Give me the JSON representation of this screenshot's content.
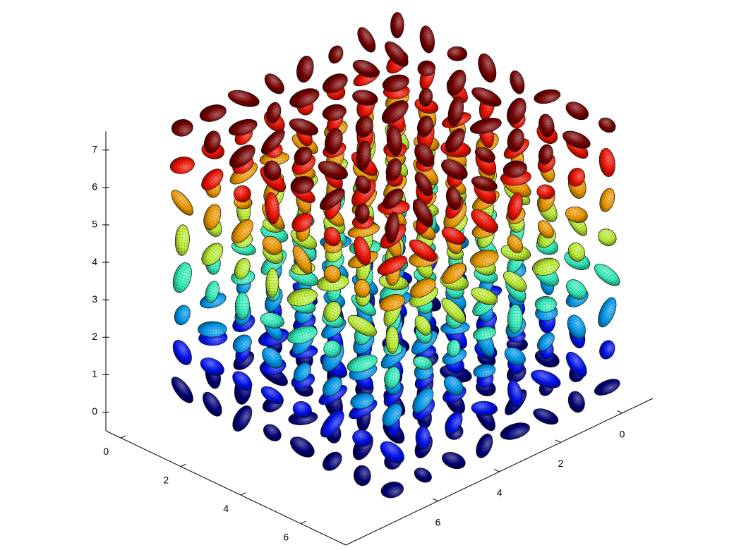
{
  "chart_data": {
    "type": "scatter3d",
    "colormap": "jet",
    "xlim": [
      -0.5,
      7.5
    ],
    "ylim": [
      -1,
      9
    ],
    "zlim": [
      -0.5,
      7.5
    ],
    "xticks": [
      0,
      2,
      4,
      6
    ],
    "yticks": [
      0,
      2,
      4,
      6
    ],
    "zticks": [
      0,
      1,
      2,
      3,
      4,
      5,
      6,
      7
    ],
    "x": [
      0,
      0,
      0,
      0,
      0,
      0,
      0,
      0,
      0,
      0,
      0,
      0,
      0,
      0,
      0,
      0,
      0,
      0,
      0,
      0,
      0,
      0,
      0,
      0,
      0,
      0,
      0,
      0,
      0,
      0,
      0,
      0,
      0,
      0,
      0,
      0,
      0,
      0,
      0,
      0,
      0,
      0,
      0,
      0,
      0,
      0,
      0,
      0,
      0,
      0,
      0,
      0,
      0,
      0,
      0,
      0,
      0,
      0,
      0,
      0,
      0,
      0,
      0,
      0,
      1,
      1,
      1,
      1,
      1,
      1,
      1,
      1,
      1,
      1,
      1,
      1,
      1,
      1,
      1,
      1,
      1,
      1,
      1,
      1,
      1,
      1,
      1,
      1,
      1,
      1,
      1,
      1,
      1,
      1,
      1,
      1,
      1,
      1,
      1,
      1,
      1,
      1,
      1,
      1,
      1,
      1,
      1,
      1,
      1,
      1,
      1,
      1,
      1,
      1,
      1,
      1,
      1,
      1,
      1,
      1,
      1,
      1,
      1,
      1,
      1,
      1,
      1,
      1,
      2,
      2,
      2,
      2,
      2,
      2,
      2,
      2,
      2,
      2,
      2,
      2,
      2,
      2,
      2,
      2,
      2,
      2,
      2,
      2,
      2,
      2,
      2,
      2,
      2,
      2,
      2,
      2,
      2,
      2,
      2,
      2,
      2,
      2,
      2,
      2,
      2,
      2,
      2,
      2,
      2,
      2,
      2,
      2,
      2,
      2,
      2,
      2,
      2,
      2,
      2,
      2,
      2,
      2,
      2,
      2,
      2,
      2,
      2,
      2,
      2,
      2,
      2,
      2,
      3,
      3,
      3,
      3,
      3,
      3,
      3,
      3,
      3,
      3,
      3,
      3,
      3,
      3,
      3,
      3,
      3,
      3,
      3,
      3,
      3,
      3,
      3,
      3,
      3,
      3,
      3,
      3,
      3,
      3,
      3,
      3,
      3,
      3,
      3,
      3,
      3,
      3,
      3,
      3,
      3,
      3,
      3,
      3,
      3,
      3,
      3,
      3,
      3,
      3,
      3,
      3,
      3,
      3,
      3,
      3,
      3,
      3,
      3,
      3,
      3,
      3,
      3,
      3,
      4,
      4,
      4,
      4,
      4,
      4,
      4,
      4,
      4,
      4,
      4,
      4,
      4,
      4,
      4,
      4,
      4,
      4,
      4,
      4,
      4,
      4,
      4,
      4,
      4,
      4,
      4,
      4,
      4,
      4,
      4,
      4,
      4,
      4,
      4,
      4,
      4,
      4,
      4,
      4,
      4,
      4,
      4,
      4,
      4,
      4,
      4,
      4,
      4,
      4,
      4,
      4,
      4,
      4,
      4,
      4,
      4,
      4,
      4,
      4,
      4,
      4,
      4,
      4,
      5,
      5,
      5,
      5,
      5,
      5,
      5,
      5,
      5,
      5,
      5,
      5,
      5,
      5,
      5,
      5,
      5,
      5,
      5,
      5,
      5,
      5,
      5,
      5,
      5,
      5,
      5,
      5,
      5,
      5,
      5,
      5,
      5,
      5,
      5,
      5,
      5,
      5,
      5,
      5,
      5,
      5,
      5,
      5,
      5,
      5,
      5,
      5,
      5,
      5,
      5,
      5,
      5,
      5,
      5,
      5,
      5,
      5,
      5,
      5,
      5,
      5,
      5,
      5,
      6,
      6,
      6,
      6,
      6,
      6,
      6,
      6,
      6,
      6,
      6,
      6,
      6,
      6,
      6,
      6,
      6,
      6,
      6,
      6,
      6,
      6,
      6,
      6,
      6,
      6,
      6,
      6,
      6,
      6,
      6,
      6,
      6,
      6,
      6,
      6,
      6,
      6,
      6,
      6,
      6,
      6,
      6,
      6,
      6,
      6,
      6,
      6,
      6,
      6,
      6,
      6,
      6,
      6,
      6,
      6,
      6,
      6,
      6,
      6,
      6,
      6,
      6,
      6,
      7,
      7,
      7,
      7,
      7,
      7,
      7,
      7,
      7,
      7,
      7,
      7,
      7,
      7,
      7,
      7,
      7,
      7,
      7,
      7,
      7,
      7,
      7,
      7,
      7,
      7,
      7,
      7,
      7,
      7,
      7,
      7,
      7,
      7,
      7,
      7,
      7,
      7,
      7,
      7,
      7,
      7,
      7,
      7,
      7,
      7,
      7,
      7,
      7,
      7,
      7,
      7,
      7,
      7,
      7,
      7,
      7,
      7,
      7,
      7,
      7,
      7,
      7,
      7
    ],
    "y": [
      0,
      0,
      0,
      0,
      0,
      0,
      0,
      0,
      1,
      1,
      1,
      1,
      1,
      1,
      1,
      1,
      2,
      2,
      2,
      2,
      2,
      2,
      2,
      2,
      3,
      3,
      3,
      3,
      3,
      3,
      3,
      3,
      4,
      4,
      4,
      4,
      4,
      4,
      4,
      4,
      5,
      5,
      5,
      5,
      5,
      5,
      5,
      5,
      6,
      6,
      6,
      6,
      6,
      6,
      6,
      6,
      7,
      7,
      7,
      7,
      7,
      7,
      7,
      7,
      0,
      0,
      0,
      0,
      0,
      0,
      0,
      0,
      1,
      1,
      1,
      1,
      1,
      1,
      1,
      1,
      2,
      2,
      2,
      2,
      2,
      2,
      2,
      2,
      3,
      3,
      3,
      3,
      3,
      3,
      3,
      3,
      4,
      4,
      4,
      4,
      4,
      4,
      4,
      4,
      5,
      5,
      5,
      5,
      5,
      5,
      5,
      5,
      6,
      6,
      6,
      6,
      6,
      6,
      6,
      6,
      7,
      7,
      7,
      7,
      7,
      7,
      7,
      7,
      0,
      0,
      0,
      0,
      0,
      0,
      0,
      0,
      1,
      1,
      1,
      1,
      1,
      1,
      1,
      1,
      2,
      2,
      2,
      2,
      2,
      2,
      2,
      2,
      3,
      3,
      3,
      3,
      3,
      3,
      3,
      3,
      4,
      4,
      4,
      4,
      4,
      4,
      4,
      4,
      5,
      5,
      5,
      5,
      5,
      5,
      5,
      5,
      6,
      6,
      6,
      6,
      6,
      6,
      6,
      6,
      7,
      7,
      7,
      7,
      7,
      7,
      7,
      7,
      0,
      0,
      0,
      0,
      0,
      0,
      0,
      0,
      1,
      1,
      1,
      1,
      1,
      1,
      1,
      1,
      2,
      2,
      2,
      2,
      2,
      2,
      2,
      2,
      3,
      3,
      3,
      3,
      3,
      3,
      3,
      3,
      4,
      4,
      4,
      4,
      4,
      4,
      4,
      4,
      5,
      5,
      5,
      5,
      5,
      5,
      5,
      5,
      6,
      6,
      6,
      6,
      6,
      6,
      6,
      6,
      7,
      7,
      7,
      7,
      7,
      7,
      7,
      7,
      0,
      0,
      0,
      0,
      0,
      0,
      0,
      0,
      1,
      1,
      1,
      1,
      1,
      1,
      1,
      1,
      2,
      2,
      2,
      2,
      2,
      2,
      2,
      2,
      3,
      3,
      3,
      3,
      3,
      3,
      3,
      3,
      4,
      4,
      4,
      4,
      4,
      4,
      4,
      4,
      5,
      5,
      5,
      5,
      5,
      5,
      5,
      5,
      6,
      6,
      6,
      6,
      6,
      6,
      6,
      6,
      7,
      7,
      7,
      7,
      7,
      7,
      7,
      7,
      0,
      0,
      0,
      0,
      0,
      0,
      0,
      0,
      1,
      1,
      1,
      1,
      1,
      1,
      1,
      1,
      2,
      2,
      2,
      2,
      2,
      2,
      2,
      2,
      3,
      3,
      3,
      3,
      3,
      3,
      3,
      3,
      4,
      4,
      4,
      4,
      4,
      4,
      4,
      4,
      5,
      5,
      5,
      5,
      5,
      5,
      5,
      5,
      6,
      6,
      6,
      6,
      6,
      6,
      6,
      6,
      7,
      7,
      7,
      7,
      7,
      7,
      7,
      7,
      0,
      0,
      0,
      0,
      0,
      0,
      0,
      0,
      1,
      1,
      1,
      1,
      1,
      1,
      1,
      1,
      2,
      2,
      2,
      2,
      2,
      2,
      2,
      2,
      3,
      3,
      3,
      3,
      3,
      3,
      3,
      3,
      4,
      4,
      4,
      4,
      4,
      4,
      4,
      4,
      5,
      5,
      5,
      5,
      5,
      5,
      5,
      5,
      6,
      6,
      6,
      6,
      6,
      6,
      6,
      6,
      7,
      7,
      7,
      7,
      7,
      7,
      7,
      7,
      0,
      0,
      0,
      0,
      0,
      0,
      0,
      0,
      1,
      1,
      1,
      1,
      1,
      1,
      1,
      1,
      2,
      2,
      2,
      2,
      2,
      2,
      2,
      2,
      3,
      3,
      3,
      3,
      3,
      3,
      3,
      3,
      4,
      4,
      4,
      4,
      4,
      4,
      4,
      4,
      5,
      5,
      5,
      5,
      5,
      5,
      5,
      5,
      6,
      6,
      6,
      6,
      6,
      6,
      6,
      6,
      7,
      7,
      7,
      7,
      7,
      7,
      7,
      7
    ],
    "z": [
      0,
      1,
      2,
      3,
      4,
      5,
      6,
      7,
      0,
      1,
      2,
      3,
      4,
      5,
      6,
      7,
      0,
      1,
      2,
      3,
      4,
      5,
      6,
      7,
      0,
      1,
      2,
      3,
      4,
      5,
      6,
      7,
      0,
      1,
      2,
      3,
      4,
      5,
      6,
      7,
      0,
      1,
      2,
      3,
      4,
      5,
      6,
      7,
      0,
      1,
      2,
      3,
      4,
      5,
      6,
      7,
      0,
      1,
      2,
      3,
      4,
      5,
      6,
      7,
      0,
      1,
      2,
      3,
      4,
      5,
      6,
      7,
      0,
      1,
      2,
      3,
      4,
      5,
      6,
      7,
      0,
      1,
      2,
      3,
      4,
      5,
      6,
      7,
      0,
      1,
      2,
      3,
      4,
      5,
      6,
      7,
      0,
      1,
      2,
      3,
      4,
      5,
      6,
      7,
      0,
      1,
      2,
      3,
      4,
      5,
      6,
      7,
      0,
      1,
      2,
      3,
      4,
      5,
      6,
      7,
      0,
      1,
      2,
      3,
      4,
      5,
      6,
      7,
      0,
      1,
      2,
      3,
      4,
      5,
      6,
      7,
      0,
      1,
      2,
      3,
      4,
      5,
      6,
      7,
      0,
      1,
      2,
      3,
      4,
      5,
      6,
      7,
      0,
      1,
      2,
      3,
      4,
      5,
      6,
      7,
      0,
      1,
      2,
      3,
      4,
      5,
      6,
      7,
      0,
      1,
      2,
      3,
      4,
      5,
      6,
      7,
      0,
      1,
      2,
      3,
      4,
      5,
      6,
      7,
      0,
      1,
      2,
      3,
      4,
      5,
      6,
      7,
      0,
      1,
      2,
      3,
      4,
      5,
      6,
      7,
      0,
      1,
      2,
      3,
      4,
      5,
      6,
      7,
      0,
      1,
      2,
      3,
      4,
      5,
      6,
      7,
      0,
      1,
      2,
      3,
      4,
      5,
      6,
      7,
      0,
      1,
      2,
      3,
      4,
      5,
      6,
      7,
      0,
      1,
      2,
      3,
      4,
      5,
      6,
      7,
      0,
      1,
      2,
      3,
      4,
      5,
      6,
      7,
      0,
      1,
      2,
      3,
      4,
      5,
      6,
      7,
      0,
      1,
      2,
      3,
      4,
      5,
      6,
      7,
      0,
      1,
      2,
      3,
      4,
      5,
      6,
      7,
      0,
      1,
      2,
      3,
      4,
      5,
      6,
      7,
      0,
      1,
      2,
      3,
      4,
      5,
      6,
      7,
      0,
      1,
      2,
      3,
      4,
      5,
      6,
      7,
      0,
      1,
      2,
      3,
      4,
      5,
      6,
      7,
      0,
      1,
      2,
      3,
      4,
      5,
      6,
      7,
      0,
      1,
      2,
      3,
      4,
      5,
      6,
      7,
      0,
      1,
      2,
      3,
      4,
      5,
      6,
      7,
      0,
      1,
      2,
      3,
      4,
      5,
      6,
      7,
      0,
      1,
      2,
      3,
      4,
      5,
      6,
      7,
      0,
      1,
      2,
      3,
      4,
      5,
      6,
      7,
      0,
      1,
      2,
      3,
      4,
      5,
      6,
      7,
      0,
      1,
      2,
      3,
      4,
      5,
      6,
      7,
      0,
      1,
      2,
      3,
      4,
      5,
      6,
      7,
      0,
      1,
      2,
      3,
      4,
      5,
      6,
      7,
      0,
      1,
      2,
      3,
      4,
      5,
      6,
      7,
      0,
      1,
      2,
      3,
      4,
      5,
      6,
      7,
      0,
      1,
      2,
      3,
      4,
      5,
      6,
      7,
      0,
      1,
      2,
      3,
      4,
      5,
      6,
      7,
      0,
      1,
      2,
      3,
      4,
      5,
      6,
      7,
      0,
      1,
      2,
      3,
      4,
      5,
      6,
      7,
      0,
      1,
      2,
      3,
      4,
      5,
      6,
      7,
      0,
      1,
      2,
      3,
      4,
      5,
      6,
      7,
      0,
      1,
      2,
      3,
      4,
      5,
      6,
      7,
      0,
      1,
      2,
      3,
      4,
      5,
      6,
      7,
      0,
      1,
      2,
      3,
      4,
      5,
      6,
      7,
      0,
      1,
      2,
      3,
      4,
      5,
      6,
      7,
      0,
      1,
      2,
      3,
      4,
      5,
      6,
      7,
      0,
      1,
      2,
      3,
      4,
      5,
      6,
      7,
      0,
      1,
      2,
      3,
      4,
      5,
      6,
      7,
      0,
      1,
      2,
      3,
      4,
      5,
      6,
      7
    ]
  }
}
